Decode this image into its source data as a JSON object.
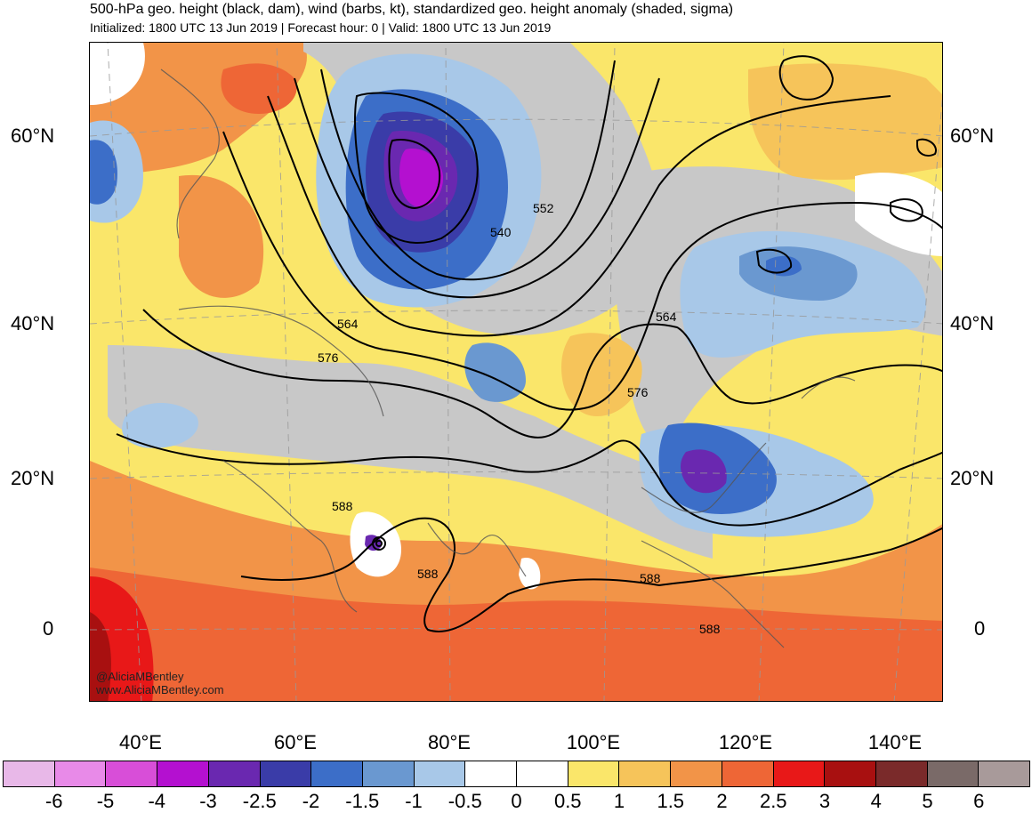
{
  "title": "500-hPa geo. height (black, dam), wind (barbs, kt), standardized geo. height anomaly (shaded, sigma)",
  "subtitle": "Initialized: 1800 UTC 13 Jun 2019 | Forecast hour: 0 | Valid: 1800 UTC 13 Jun 2019",
  "lat_labels": [
    "60°N",
    "40°N",
    "20°N",
    "0"
  ],
  "lon_labels": [
    "40°E",
    "60°E",
    "80°E",
    "100°E",
    "120°E",
    "140°E"
  ],
  "contour_labels": [
    "552",
    "540",
    "564",
    "564",
    "576",
    "576",
    "588",
    "588",
    "588",
    "588"
  ],
  "credit": {
    "handle": "@AliciaMBentley",
    "site": "www.AliciaMBentley.com"
  },
  "colorbar": {
    "colors": [
      "#e8b8e8",
      "#e88ae8",
      "#d84ed8",
      "#b410d0",
      "#6a28b0",
      "#3a3ca8",
      "#3c6ec8",
      "#6a98d0",
      "#a8c8e8",
      "#ffffff",
      "#ffffff",
      "#fae66a",
      "#f6c45a",
      "#f29448",
      "#ee6636",
      "#e81818",
      "#a81010",
      "#7a2a2a",
      "#7a6a68",
      "#a89a9a"
    ],
    "labels": [
      "-6",
      "-5",
      "-4",
      "-3",
      "-2.5",
      "-2",
      "-1.5",
      "-1",
      "-0.5",
      "0",
      "0.5",
      "1",
      "1.5",
      "2",
      "2.5",
      "3",
      "4",
      "5",
      "6"
    ]
  }
}
